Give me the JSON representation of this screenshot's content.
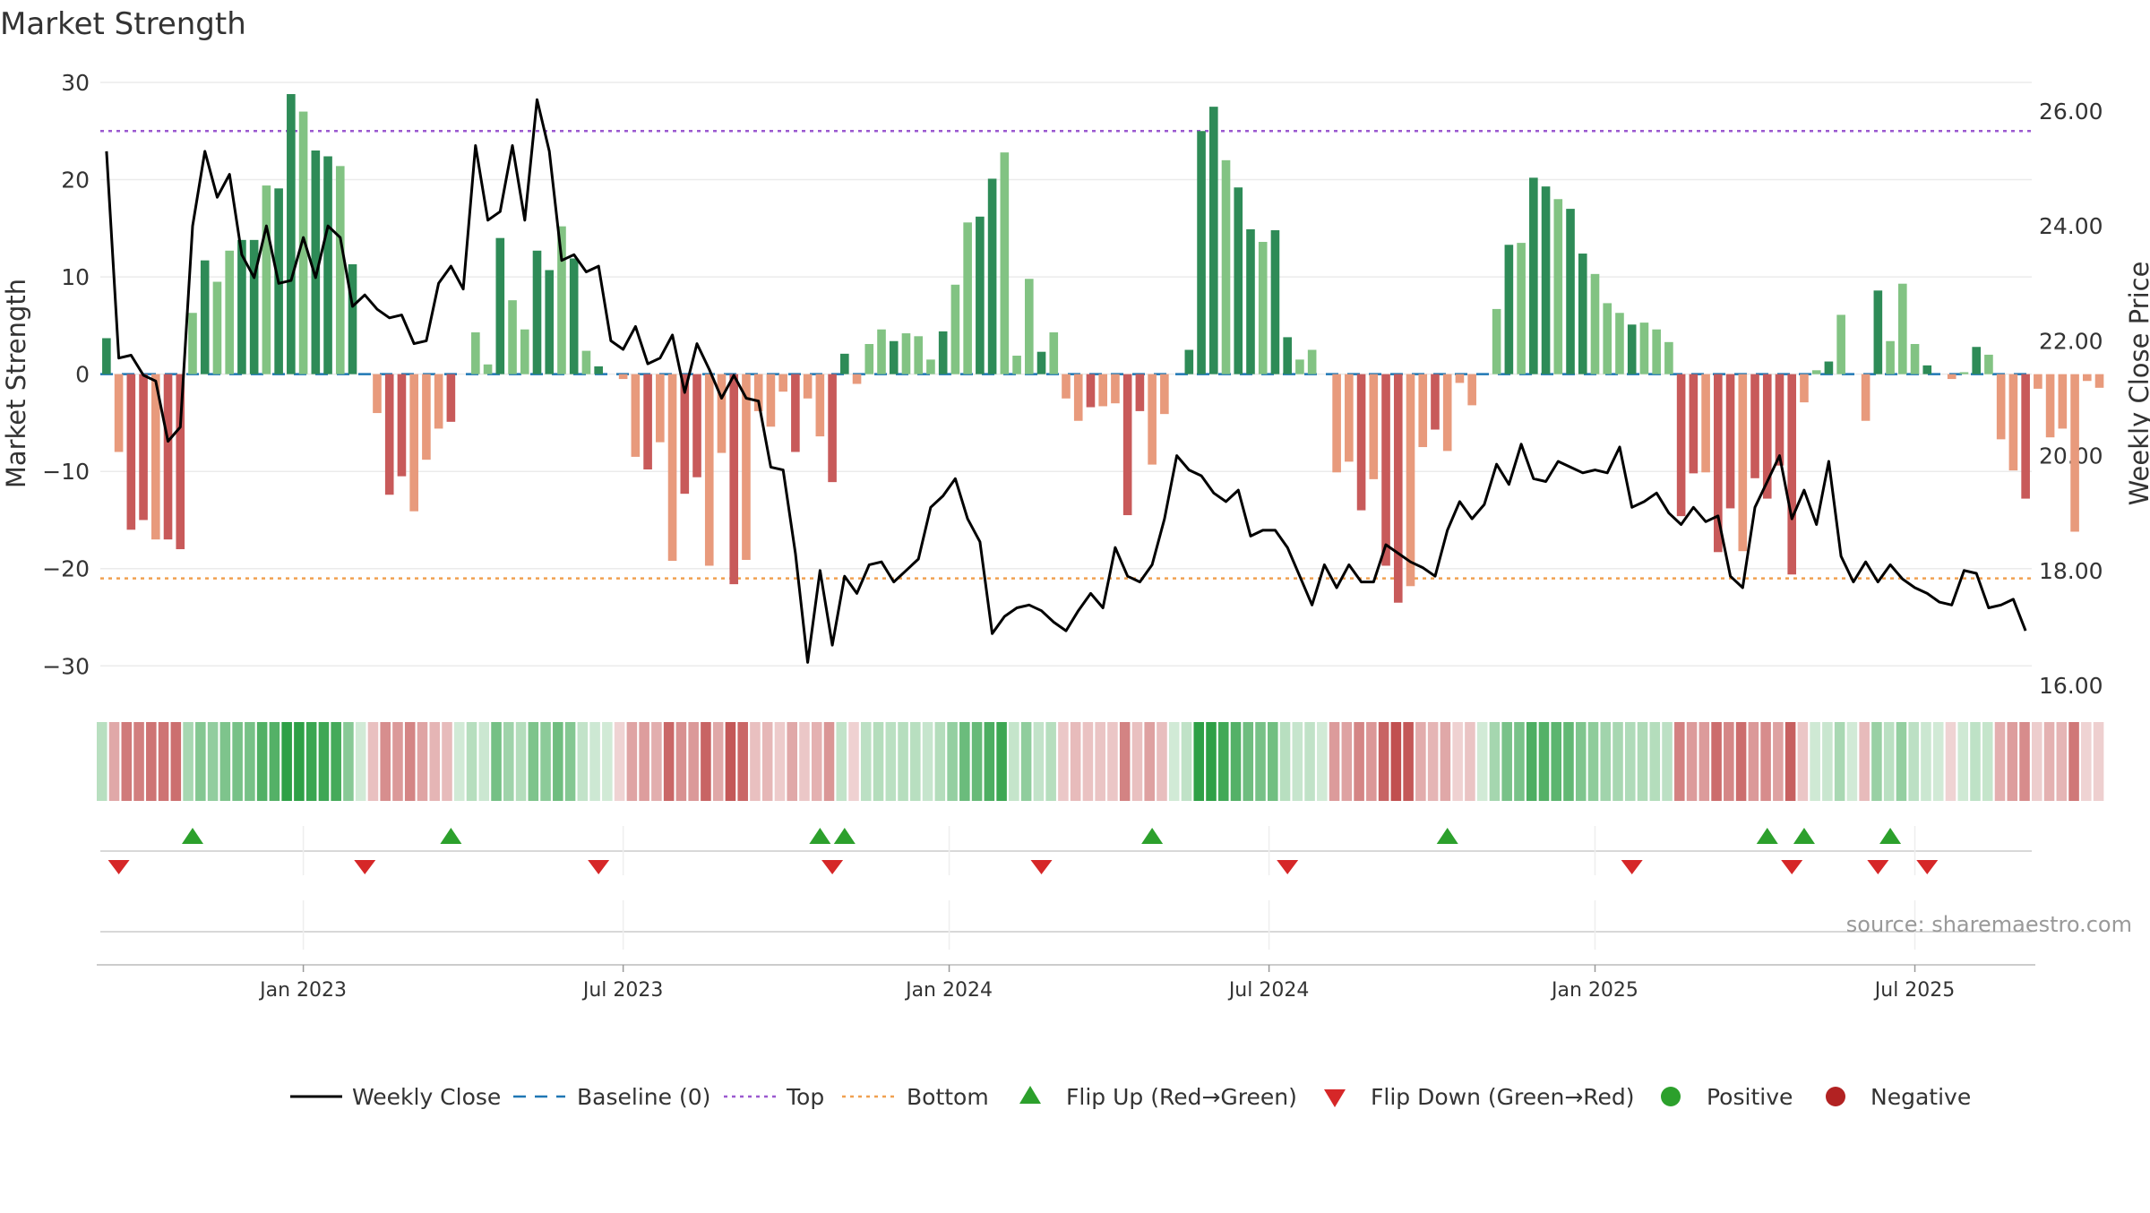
{
  "chart_data": {
    "type": "bar+line",
    "title": "Market Strength",
    "ylabel_left": "Market Strength",
    "ylabel_right": "Weekly Close Price",
    "left_ylim": [
      -32,
      30
    ],
    "right_ylim": [
      16,
      26.5
    ],
    "left_ticks": [
      30,
      20,
      10,
      0,
      -10,
      -20,
      -30
    ],
    "left_tick_labels": [
      "30",
      "20",
      "10",
      "0",
      "−10",
      "−20",
      "−30"
    ],
    "right_ticks": [
      26,
      24,
      22,
      20,
      18,
      16
    ],
    "right_tick_labels": [
      "26.00",
      "24.00",
      "22.00",
      "20.00",
      "18.00",
      "16.00"
    ],
    "x_tick_labels": [
      {
        "label": "Jan 2023",
        "week": 16
      },
      {
        "label": "Jul 2023",
        "week": 42
      },
      {
        "label": "Jan 2024",
        "week": 68.5
      },
      {
        "label": "Jul 2024",
        "week": 94.5
      },
      {
        "label": "Jan 2025",
        "week": 121
      },
      {
        "label": "Jul 2025",
        "week": 147
      }
    ],
    "total_weeks": 157,
    "top_level": 25,
    "bottom_level": -21,
    "strength": [
      3.7,
      -8,
      -16,
      -15,
      -17,
      -17,
      -18,
      6.3,
      11.7,
      9.5,
      12.7,
      13.8,
      13.8,
      19.4,
      19.1,
      28.8,
      27,
      23,
      22.4,
      21.4,
      11.3,
      0,
      -4,
      -12.4,
      -10.5,
      -14.1,
      -8.8,
      -5.6,
      -4.9,
      0,
      4.3,
      1,
      14,
      7.6,
      4.6,
      12.7,
      10.7,
      15.2,
      11.9,
      2.4,
      0.8,
      0,
      -0.5,
      -8.5,
      -9.8,
      -7,
      -19.2,
      -12.3,
      -10.6,
      -19.7,
      -8.1,
      -21.6,
      -19.1,
      -3.8,
      -5.4,
      -1.8,
      -8,
      -2.5,
      -6.4,
      -11.1,
      2.1,
      -1,
      3.1,
      4.6,
      3.4,
      4.2,
      3.9,
      1.5,
      4.4,
      9.2,
      15.6,
      16.2,
      20.1,
      22.8,
      1.9,
      9.8,
      2.3,
      4.3,
      -2.5,
      -4.8,
      -3.4,
      -3.3,
      -3,
      -14.5,
      -3.8,
      -9.3,
      -4.1,
      0,
      2.5,
      25,
      27.5,
      22,
      19.2,
      14.9,
      13.6,
      14.8,
      3.8,
      1.5,
      2.5,
      0,
      -10.1,
      -9,
      -14,
      -10.8,
      -19.7,
      -23.5,
      -21.8,
      -7.5,
      -5.7,
      -7.9,
      -0.9,
      -3.2,
      0,
      6.7,
      13.3,
      13.5,
      20.2,
      19.3,
      18,
      17,
      12.4,
      10.3,
      7.3,
      6.3,
      5.1,
      5.3,
      4.6,
      3.3,
      -14.6,
      -10.2,
      -10.1,
      -18.3,
      -13.8,
      -18.2,
      -10.7,
      -12.8,
      -9.4,
      -20.6,
      -2.9,
      0.4,
      1.3,
      6.1,
      0,
      -4.8,
      8.6,
      3.4,
      9.3,
      3.1,
      0.9,
      0,
      -0.5,
      0.2,
      2.8,
      2,
      -6.7,
      -9.9,
      -12.8,
      -1.5,
      -6.5,
      -5.6,
      -16.2,
      -0.7,
      -1.4
    ],
    "weekly_close": [
      25.3,
      21.7,
      21.75,
      21.4,
      21.3,
      20.25,
      20.5,
      24,
      25.3,
      24.5,
      24.9,
      23.5,
      23.1,
      24,
      23,
      23.05,
      23.8,
      23.1,
      24,
      23.8,
      22.6,
      22.8,
      22.55,
      22.4,
      22.45,
      21.95,
      22,
      23,
      23.3,
      22.9,
      25.4,
      24.1,
      24.25,
      25.4,
      24.1,
      26.2,
      25.3,
      23.4,
      23.5,
      23.2,
      23.3,
      22,
      21.85,
      22.25,
      21.6,
      21.7,
      22.1,
      21.1,
      21.95,
      21.5,
      21,
      21.4,
      21,
      20.95,
      19.8,
      19.75,
      18.3,
      16.4,
      18,
      16.7,
      17.9,
      17.6,
      18.1,
      18.15,
      17.8,
      18,
      18.2,
      19.1,
      19.3,
      19.6,
      18.9,
      18.5,
      16.9,
      17.2,
      17.35,
      17.4,
      17.3,
      17.1,
      16.95,
      17.3,
      17.6,
      17.35,
      18.4,
      17.9,
      17.8,
      18.1,
      18.9,
      20,
      19.75,
      19.65,
      19.35,
      19.2,
      19.4,
      18.6,
      18.7,
      18.7,
      18.4,
      17.9,
      17.4,
      18.1,
      17.7,
      18.1,
      17.8,
      17.8,
      18.45,
      18.3,
      18.15,
      18.05,
      17.9,
      18.7,
      19.2,
      18.9,
      19.15,
      19.85,
      19.5,
      20.2,
      19.6,
      19.55,
      19.9,
      19.8,
      19.7,
      19.75,
      19.7,
      20.15,
      19.1,
      19.2,
      19.35,
      19,
      18.8,
      19.1,
      18.85,
      18.95,
      17.9,
      17.7,
      19.1,
      19.55,
      20,
      18.9,
      19.4,
      18.8,
      19.9,
      18.25,
      17.8,
      18.15,
      17.8,
      18.1,
      17.85,
      17.7,
      17.6,
      17.45,
      17.4,
      18,
      17.95,
      17.35,
      17.4,
      17.5,
      16.95
    ],
    "flip_up_weeks": [
      7,
      28,
      58,
      60,
      85,
      109,
      135,
      138,
      145
    ],
    "flip_down_weeks": [
      1,
      21,
      40,
      59,
      76,
      96,
      124,
      137,
      144,
      148
    ],
    "legend": [
      {
        "label": "Weekly Close",
        "kind": "line",
        "color": "#000000"
      },
      {
        "label": "Baseline (0)",
        "kind": "dash",
        "color": "#1f77b4"
      },
      {
        "label": "Top",
        "kind": "dot",
        "color": "#9b59d0"
      },
      {
        "label": "Bottom",
        "kind": "dot",
        "color": "#f0a050"
      },
      {
        "label": "Flip Up (Red→Green)",
        "kind": "tri-up",
        "color": "#2ca02c"
      },
      {
        "label": "Flip Down (Green→Red)",
        "kind": "tri-down",
        "color": "#d62728"
      },
      {
        "label": "Positive",
        "kind": "dot-marker",
        "color": "#2ca02c"
      },
      {
        "label": "Negative",
        "kind": "dot-marker",
        "color": "#b22222"
      }
    ],
    "colors": {
      "pos_strong": "#2e8b57",
      "pos_weak": "#82c383",
      "neg_strong": "#c85a5a",
      "neg_weak": "#e89a7c",
      "line": "#000000",
      "baseline": "#1f77b4",
      "top": "#9b59d0",
      "bottom": "#f0a050",
      "flip_up": "#2ca02c",
      "flip_down": "#d62728"
    },
    "source": "source: sharemaestro.com"
  }
}
